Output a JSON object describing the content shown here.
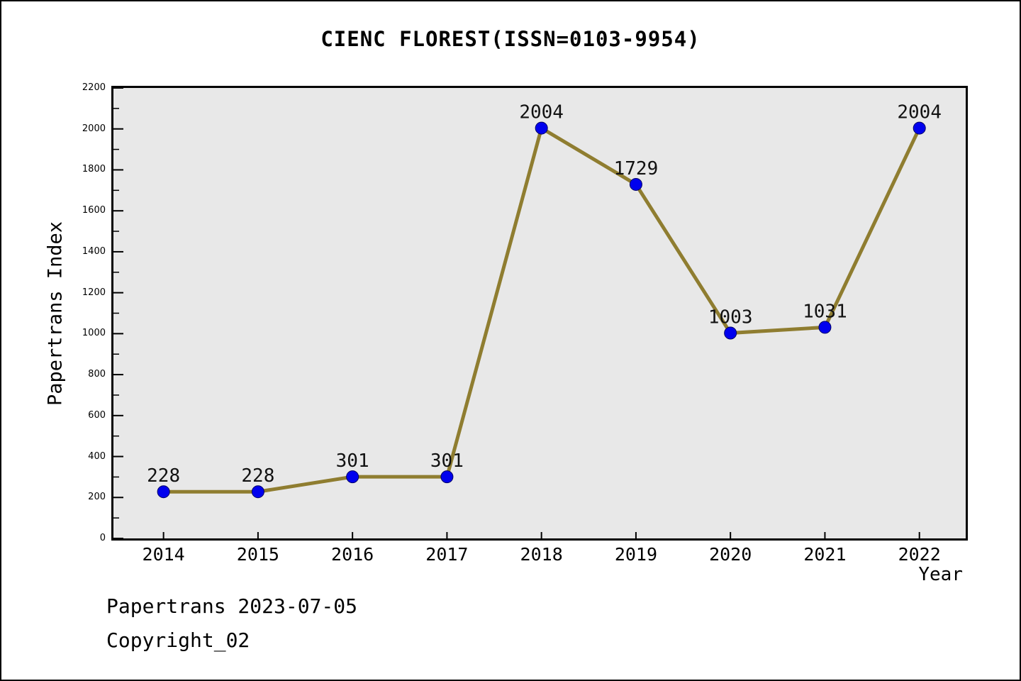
{
  "chart_data": {
    "type": "line",
    "title": "CIENC FLOREST(ISSN=0103-9954)",
    "xlabel": "Year",
    "ylabel": "Papertrans Index",
    "x": [
      2014,
      2015,
      2016,
      2017,
      2018,
      2019,
      2020,
      2021,
      2022
    ],
    "values": [
      228,
      228,
      301,
      301,
      2004,
      1729,
      1003,
      1031,
      2004
    ],
    "point_labels": [
      "228",
      "228",
      "301",
      "301",
      "2004",
      "1729",
      "1003",
      "1031",
      "2004"
    ],
    "xlim": [
      2013.47,
      2022.49
    ],
    "ylim": [
      0,
      2200
    ],
    "y_tick_step": 200,
    "y_minor_tick_step": 100,
    "grid": false,
    "legend": null,
    "colors": {
      "line": "#8f7d30",
      "marker": "#0000ee",
      "marker_edge": "#000066",
      "plot_bg": "#e8e8e8",
      "axis": "#000000",
      "text": "#111111"
    }
  },
  "footer": {
    "line1": "Papertrans 2023-07-05",
    "line2": "Copyright_02"
  }
}
